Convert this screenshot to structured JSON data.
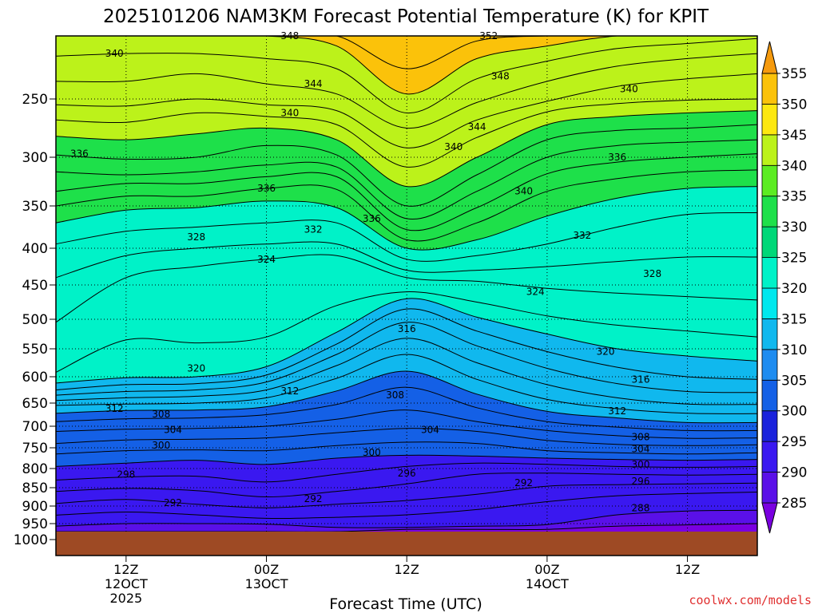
{
  "chart_data": {
    "type": "heatmap",
    "title": "2025101206 NAM3KM Forecast Potential Temperature (K) for KPIT",
    "xlabel": "Forecast Time (UTC)",
    "ylabel": "",
    "units": "K",
    "watermark": "coolwx.com/models",
    "y_scale": "pressure (hPa), log-like, decreasing upward",
    "y_ticks": [
      "250",
      "300",
      "350",
      "400",
      "450",
      "500",
      "550",
      "600",
      "650",
      "700",
      "750",
      "800",
      "850",
      "900",
      "950",
      "1000"
    ],
    "x_ticks": [
      {
        "line1": "12Z",
        "line2": "12OCT",
        "line3": "2025"
      },
      {
        "line1": "00Z",
        "line2": "13OCT",
        "line3": ""
      },
      {
        "line1": "12Z",
        "line2": "",
        "line3": ""
      },
      {
        "line1": "00Z",
        "line2": "14OCT",
        "line3": ""
      },
      {
        "line1": "12Z",
        "line2": "",
        "line3": ""
      }
    ],
    "colorbar": {
      "levels": [
        "285",
        "290",
        "295",
        "300",
        "305",
        "310",
        "315",
        "320",
        "325",
        "330",
        "335",
        "340",
        "345",
        "350",
        "355"
      ],
      "colors": [
        "#7a00e0",
        "#5a10e8",
        "#3a18f0",
        "#1a22dc",
        "#1460e6",
        "#1e8cf0",
        "#10b8ee",
        "#00e8ee",
        "#00f2c8",
        "#00d878",
        "#1ee04a",
        "#5cec22",
        "#bcf21a",
        "#fde810",
        "#fbc20a",
        "#f59a0e"
      ]
    },
    "contour_labels": [
      "348",
      "352",
      "340",
      "344",
      "348",
      "340",
      "340",
      "344",
      "340",
      "336",
      "336",
      "336",
      "340",
      "336",
      "332",
      "328",
      "332",
      "324",
      "328",
      "324",
      "316",
      "320",
      "320",
      "316",
      "312",
      "312",
      "308",
      "312",
      "308",
      "304",
      "304",
      "308",
      "300",
      "300",
      "304",
      "298",
      "296",
      "300",
      "292",
      "296",
      "292",
      "292",
      "288"
    ],
    "ground_level": "below ~970 hPa (terrain)"
  }
}
